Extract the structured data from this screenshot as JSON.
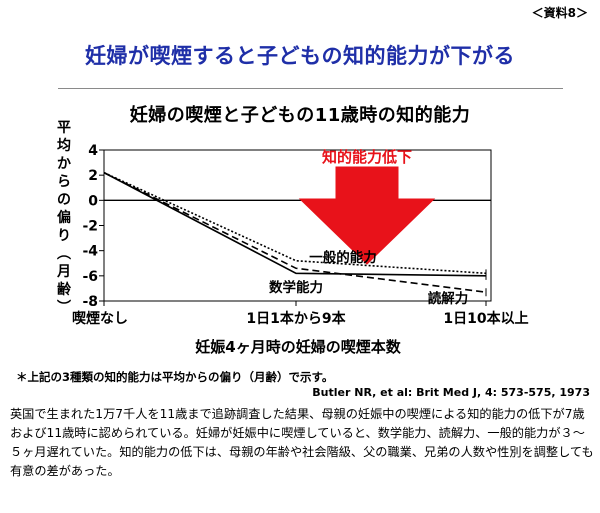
{
  "doc_label": "＜資料8＞",
  "headline": "妊婦が喫煙すると子どもの知的能力が下がる",
  "chart_data": {
    "type": "line",
    "title": "妊婦の喫煙と子どもの11歳時の知的能力",
    "xlabel": "妊娠4ヶ月時の妊婦の喫煙本数",
    "ylabel": "平均からの偏り（月齢）",
    "categories": [
      "喫煙なし",
      "1日1本から9本",
      "1日10本以上"
    ],
    "ylim": [
      -8,
      4
    ],
    "yticks": [
      4,
      2,
      0,
      -2,
      -4,
      -6,
      -8
    ],
    "series": [
      {
        "name": "一般的能力",
        "style": "dotted",
        "values": [
          2.2,
          -4.8,
          -5.8
        ]
      },
      {
        "name": "数学能力",
        "style": "solid",
        "values": [
          2.2,
          -5.8,
          -6.0
        ]
      },
      {
        "name": "読解力",
        "style": "dashed",
        "values": [
          2.2,
          -5.4,
          -7.3
        ]
      }
    ],
    "annotation": "知的能力低下",
    "annotation_color": "#e8121a",
    "grid": false
  },
  "footnote": "＊上記の3種類の知的能力は平均からの偏り（月齢）で示す。",
  "citation": "Butler NR, et al: Brit Med J, 4: 573-575, 1973",
  "summary": "英国で生まれた1万7千人を11歳まで追跡調査した結果、母親の妊娠中の喫煙による知的能力の低下が7歳および11歳時に認められている。妊婦が妊娠中に喫煙していると、数学能力、読解力、一般的能力が３〜５ヶ月遅れていた。知的能力の低下は、母親の年齢や社会階級、父の職業、兄弟の人数や性別を調整しても有意の差があった。",
  "colors": {
    "headline": "#1f2fa8",
    "arrow": "#e8121a"
  }
}
